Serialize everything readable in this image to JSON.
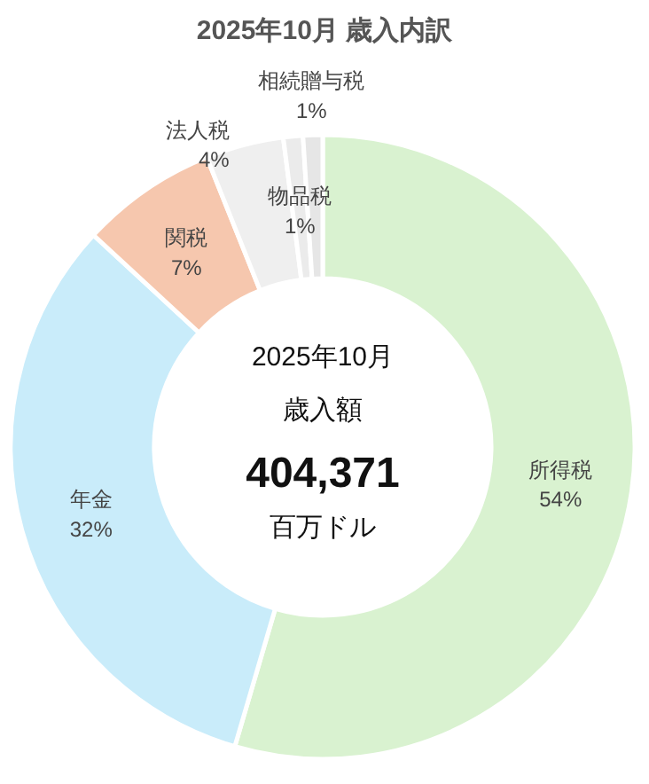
{
  "chart_data": {
    "type": "donut",
    "title": "2025年10月 歳入内訳",
    "categories": [
      "所得税",
      "年金",
      "関税",
      "法人税",
      "物品税",
      "相続贈与税"
    ],
    "values": [
      54,
      32,
      7,
      4,
      1,
      1
    ],
    "value_labels": [
      "54%",
      "32%",
      "7%",
      "4%",
      "1%",
      "1%"
    ],
    "colors": [
      "#d9f2d0",
      "#c9ecfa",
      "#f6c7ae",
      "#efefef",
      "#ebebeb",
      "#e6e6e6"
    ],
    "annotations": [
      "2025年10月",
      "歳入額",
      "404,371",
      "百万ドル"
    ]
  }
}
